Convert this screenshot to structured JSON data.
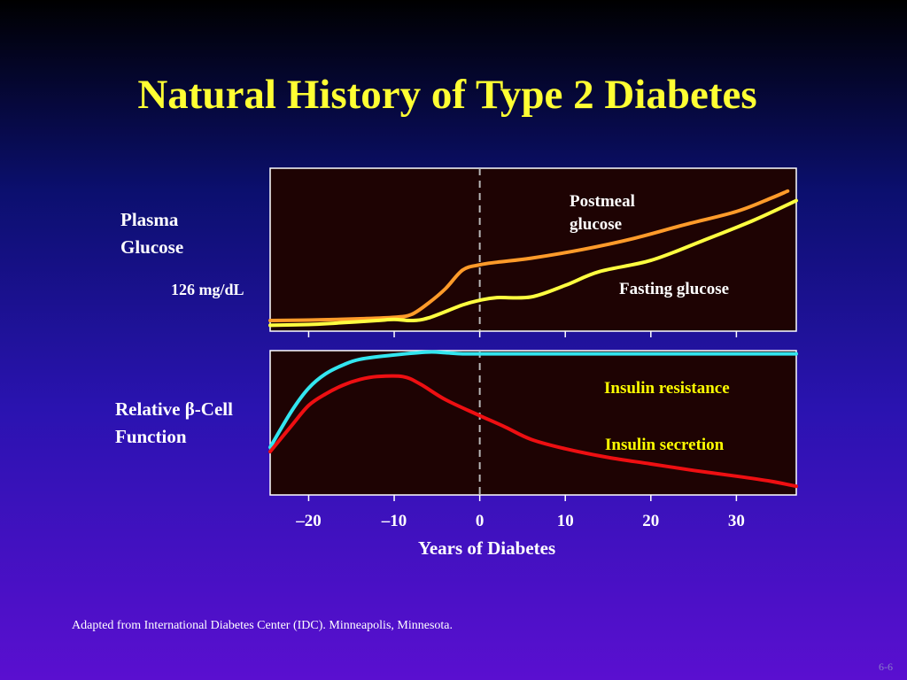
{
  "title": "Natural History of Type 2 Diabetes",
  "source": "Adapted from International Diabetes Center (IDC). Minneapolis, Minnesota.",
  "slide_number": "6-6",
  "colors": {
    "title": "#ffff33",
    "panel_bg": "#1e0303",
    "postmeal": "#ff9b2a",
    "fasting": "#ffff40",
    "insulin_resistance": "#33e6f0",
    "insulin_secretion": "#ee0f12",
    "label_yellow": "#ffff00"
  },
  "chart_data": {
    "x_axis": {
      "label": "Years of Diabetes",
      "ticks": [
        -20,
        -10,
        0,
        10,
        20,
        30
      ],
      "tick_labels": [
        "–20",
        "–10",
        "0",
        "10",
        "20",
        "30"
      ],
      "range": [
        -24.5,
        37
      ]
    },
    "onset_marker_x": 0,
    "panels": [
      {
        "type": "line",
        "ylabel_lines": [
          "Plasma",
          "Glucose"
        ],
        "threshold_label": "126 mg/dL",
        "series": [
          {
            "name": "Postmeal glucose",
            "label_lines": [
              "Postmeal",
              "glucose"
            ],
            "color_key": "postmeal",
            "points": [
              [
                -24.5,
                6.5
              ],
              [
                -20,
                6.8
              ],
              [
                -14,
                7.6
              ],
              [
                -10,
                8.5
              ],
              [
                -8,
                10.2
              ],
              [
                -6,
                17.2
              ],
              [
                -4,
                26.1
              ],
              [
                -2,
                37.5
              ],
              [
                0,
                40.7
              ],
              [
                2,
                42.3
              ],
              [
                6,
                44.8
              ],
              [
                12,
                50.1
              ],
              [
                18,
                56.9
              ],
              [
                24,
                65.4
              ],
              [
                30,
                73.4
              ],
              [
                34,
                81.5
              ],
              [
                36,
                86
              ]
            ]
          },
          {
            "name": "Fasting glucose",
            "label_lines": [
              "Fasting glucose"
            ],
            "color_key": "fasting",
            "points": [
              [
                -24.5,
                3.6
              ],
              [
                -20,
                4.1
              ],
              [
                -16,
                5.2
              ],
              [
                -12,
                6.5
              ],
              [
                -10,
                7.2
              ],
              [
                -8,
                6.5
              ],
              [
                -6,
                8.1
              ],
              [
                -2,
                16.1
              ],
              [
                0,
                18.9
              ],
              [
                2,
                20.6
              ],
              [
                6,
                21.0
              ],
              [
                10,
                28.1
              ],
              [
                14,
                36.6
              ],
              [
                20,
                43.4
              ],
              [
                26,
                55.4
              ],
              [
                32,
                68.0
              ],
              [
                37,
                80.1
              ]
            ]
          }
        ]
      },
      {
        "type": "line",
        "ylabel_lines": [
          "Relative β-Cell",
          "Function"
        ],
        "series": [
          {
            "name": "Insulin resistance",
            "label_lines": [
              "Insulin resistance"
            ],
            "color_key": "insulin_resistance",
            "points": [
              [
                -24.5,
                33
              ],
              [
                -22,
                58
              ],
              [
                -20,
                74
              ],
              [
                -18,
                84
              ],
              [
                -16,
                90
              ],
              [
                -14,
                94
              ],
              [
                -10,
                97
              ],
              [
                -6,
                99
              ],
              [
                -4,
                98.5
              ],
              [
                -2,
                97.8
              ],
              [
                0,
                97.8
              ],
              [
                10,
                97.8
              ],
              [
                20,
                97.8
              ],
              [
                37,
                97.8
              ]
            ]
          },
          {
            "name": "Insulin secretion",
            "label_lines": [
              "Insulin secretion"
            ],
            "color_key": "insulin_secretion",
            "points": [
              [
                -24.5,
                30
              ],
              [
                -22,
                48
              ],
              [
                -20,
                62
              ],
              [
                -18,
                70
              ],
              [
                -16,
                76
              ],
              [
                -14,
                80
              ],
              [
                -12,
                82
              ],
              [
                -9,
                82
              ],
              [
                -7,
                77
              ],
              [
                -4,
                66
              ],
              [
                0,
                55
              ],
              [
                3,
                47
              ],
              [
                6,
                38.5
              ],
              [
                10,
                32
              ],
              [
                15,
                26
              ],
              [
                20,
                21.5
              ],
              [
                25,
                17
              ],
              [
                30,
                13
              ],
              [
                34,
                9.5
              ],
              [
                37,
                6
              ]
            ]
          }
        ]
      }
    ]
  }
}
